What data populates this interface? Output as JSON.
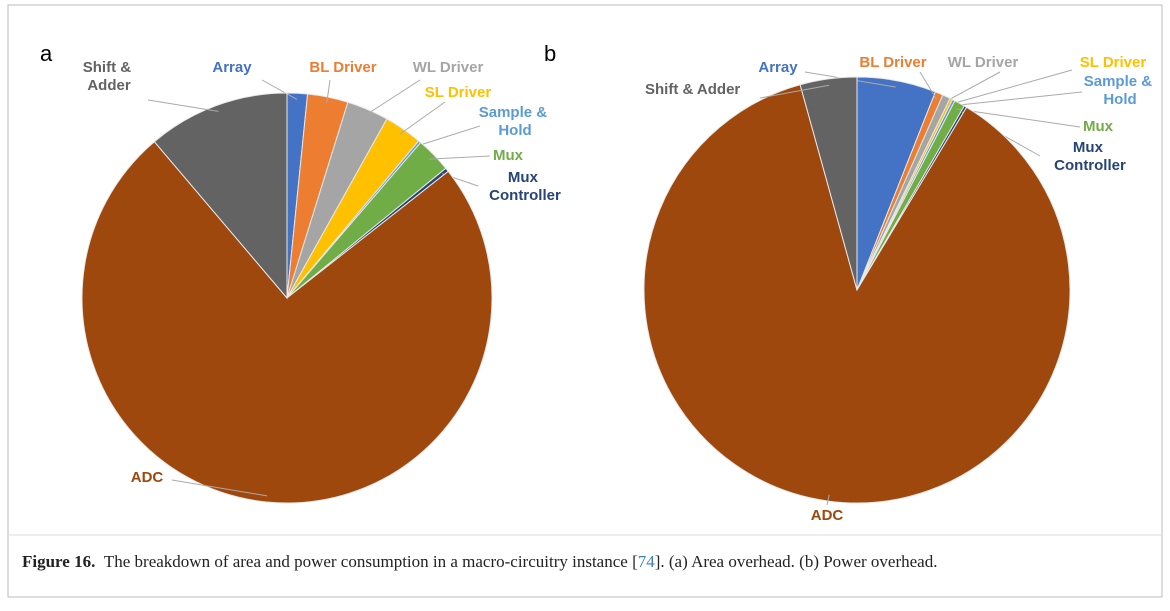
{
  "chart_data": [
    {
      "type": "pie",
      "label": "a",
      "categories": [
        "Array",
        "BL Driver",
        "WL Driver",
        "SL Driver",
        "Sample & Hold",
        "Mux",
        "Mux Controller",
        "ADC",
        "Shift & Adder"
      ],
      "values": [
        1.6,
        3.2,
        3.3,
        3.0,
        0.2,
        2.8,
        0.3,
        74.4,
        11.2
      ],
      "colors": [
        "#4472c4",
        "#ed7d31",
        "#a5a5a5",
        "#ffc000",
        "#5b9bd5",
        "#70ad47",
        "#264478",
        "#9e480e",
        "#636363"
      ]
    },
    {
      "type": "pie",
      "label": "b",
      "categories": [
        "Array",
        "BL Driver",
        "WL Driver",
        "SL Driver",
        "Sample & Hold",
        "Mux",
        "Mux Controller",
        "ADC",
        "Shift & Adder"
      ],
      "values": [
        6.0,
        0.6,
        0.6,
        0.2,
        0.2,
        0.8,
        0.2,
        87.1,
        4.3
      ],
      "colors": [
        "#4472c4",
        "#ed7d31",
        "#a5a5a5",
        "#ffc000",
        "#5b9bd5",
        "#70ad47",
        "#264478",
        "#9e480e",
        "#636363"
      ]
    }
  ],
  "caption": {
    "label": "Figure 16.",
    "text_before": "The breakdown of area and power consumption in a macro-circuitry instance [",
    "ref": "74",
    "text_after": "]. (a) Area overhead. (b) Power overhead."
  }
}
